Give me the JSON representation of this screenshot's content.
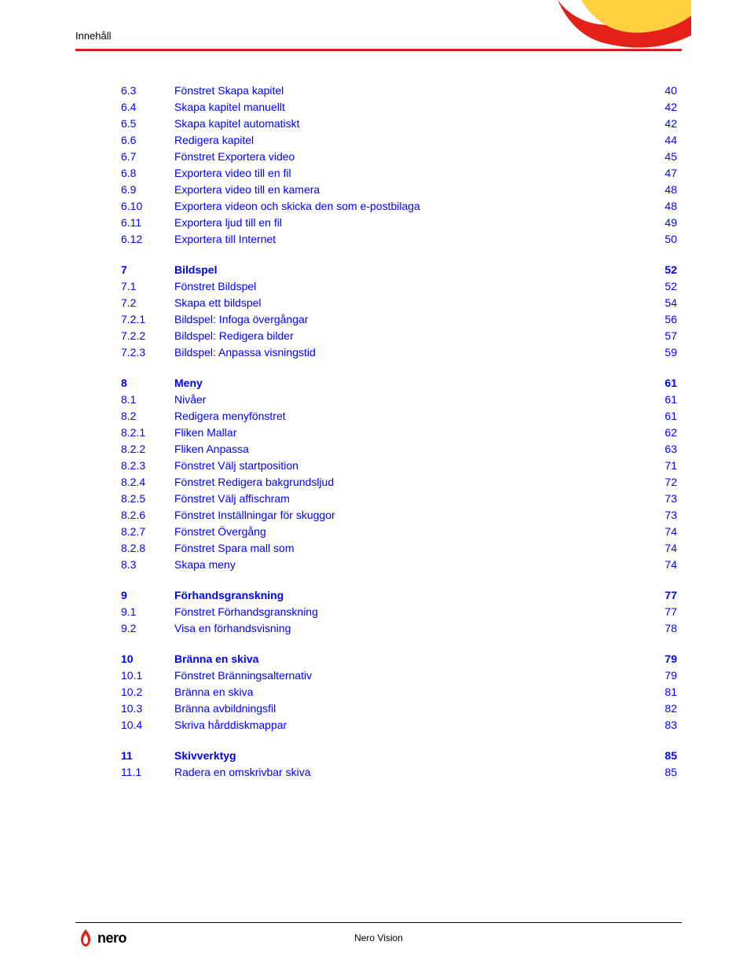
{
  "header": {
    "title": "Innehåll"
  },
  "footer": {
    "brand": "Nero Vision",
    "logo_text": "nero"
  },
  "colors": {
    "accent": "#e32119",
    "link": "#0000ff",
    "text": "#000000",
    "background": "#ffffff"
  },
  "toc": [
    {
      "type": "row",
      "num": "6.3",
      "title": "Fönstret Skapa kapitel",
      "page": "40"
    },
    {
      "type": "row",
      "num": "6.4",
      "title": "Skapa kapitel manuellt",
      "page": "42"
    },
    {
      "type": "row",
      "num": "6.5",
      "title": "Skapa kapitel automatiskt",
      "page": "42"
    },
    {
      "type": "row",
      "num": "6.6",
      "title": "Redigera kapitel",
      "page": "44"
    },
    {
      "type": "row",
      "num": "6.7",
      "title": "Fönstret Exportera video",
      "page": "45"
    },
    {
      "type": "row",
      "num": "6.8",
      "title": "Exportera video till en fil",
      "page": "47"
    },
    {
      "type": "row",
      "num": "6.9",
      "title": "Exportera video till en kamera",
      "page": "48"
    },
    {
      "type": "row",
      "num": "6.10",
      "title": "Exportera videon och skicka den som e-postbilaga",
      "page": "48"
    },
    {
      "type": "row",
      "num": "6.11",
      "title": "Exportera ljud till en fil",
      "page": "49"
    },
    {
      "type": "row",
      "num": "6.12",
      "title": "Exportera till Internet",
      "page": "50"
    },
    {
      "type": "gap"
    },
    {
      "type": "row",
      "bold": true,
      "num": "7",
      "title": "Bildspel",
      "page": "52"
    },
    {
      "type": "row",
      "num": "7.1",
      "title": "Fönstret Bildspel",
      "page": "52"
    },
    {
      "type": "row",
      "num": "7.2",
      "title": "Skapa ett bildspel",
      "page": "54"
    },
    {
      "type": "row",
      "num": "7.2.1",
      "title": "Bildspel: Infoga övergångar",
      "page": "56"
    },
    {
      "type": "row",
      "num": "7.2.2",
      "title": "Bildspel: Redigera bilder",
      "page": "57"
    },
    {
      "type": "row",
      "num": "7.2.3",
      "title": "Bildspel: Anpassa visningstid",
      "page": "59"
    },
    {
      "type": "gap"
    },
    {
      "type": "row",
      "bold": true,
      "num": "8",
      "title": "Meny",
      "page": "61"
    },
    {
      "type": "row",
      "num": "8.1",
      "title": "Nivåer",
      "page": "61"
    },
    {
      "type": "row",
      "num": "8.2",
      "title": "Redigera menyfönstret",
      "page": "61"
    },
    {
      "type": "row",
      "num": "8.2.1",
      "title": "Fliken Mallar",
      "page": "62"
    },
    {
      "type": "row",
      "num": "8.2.2",
      "title": "Fliken Anpassa",
      "page": "63"
    },
    {
      "type": "row",
      "num": "8.2.3",
      "title": "Fönstret Välj startposition",
      "page": "71"
    },
    {
      "type": "row",
      "num": "8.2.4",
      "title": "Fönstret Redigera bakgrundsljud",
      "page": "72"
    },
    {
      "type": "row",
      "num": "8.2.5",
      "title": "Fönstret Välj affischram",
      "page": "73"
    },
    {
      "type": "row",
      "num": "8.2.6",
      "title": "Fönstret Inställningar för skuggor",
      "page": "73"
    },
    {
      "type": "row",
      "num": "8.2.7",
      "title": "Fönstret Övergång",
      "page": "74"
    },
    {
      "type": "row",
      "num": "8.2.8",
      "title": "Fönstret Spara mall som",
      "page": "74"
    },
    {
      "type": "row",
      "num": "8.3",
      "title": "Skapa meny",
      "page": "74"
    },
    {
      "type": "gap"
    },
    {
      "type": "row",
      "bold": true,
      "num": "9",
      "title": "Förhandsgranskning",
      "page": "77"
    },
    {
      "type": "row",
      "num": "9.1",
      "title": "Fönstret Förhandsgranskning",
      "page": "77"
    },
    {
      "type": "row",
      "num": "9.2",
      "title": "Visa en förhandsvisning",
      "page": "78"
    },
    {
      "type": "gap"
    },
    {
      "type": "row",
      "bold": true,
      "num": "10",
      "title": "Bränna en skiva",
      "page": "79"
    },
    {
      "type": "row",
      "num": "10.1",
      "title": "Fönstret Bränningsalternativ",
      "page": "79"
    },
    {
      "type": "row",
      "num": "10.2",
      "title": "Bränna en skiva",
      "page": "81"
    },
    {
      "type": "row",
      "num": "10.3",
      "title": "Bränna avbildningsfil",
      "page": "82"
    },
    {
      "type": "row",
      "num": "10.4",
      "title": "Skriva hårddiskmappar",
      "page": "83"
    },
    {
      "type": "gap"
    },
    {
      "type": "row",
      "bold": true,
      "num": "11",
      "title": "Skivverktyg",
      "page": "85"
    },
    {
      "type": "row",
      "num": "11.1",
      "title": "Radera en omskrivbar skiva",
      "page": "85"
    }
  ]
}
